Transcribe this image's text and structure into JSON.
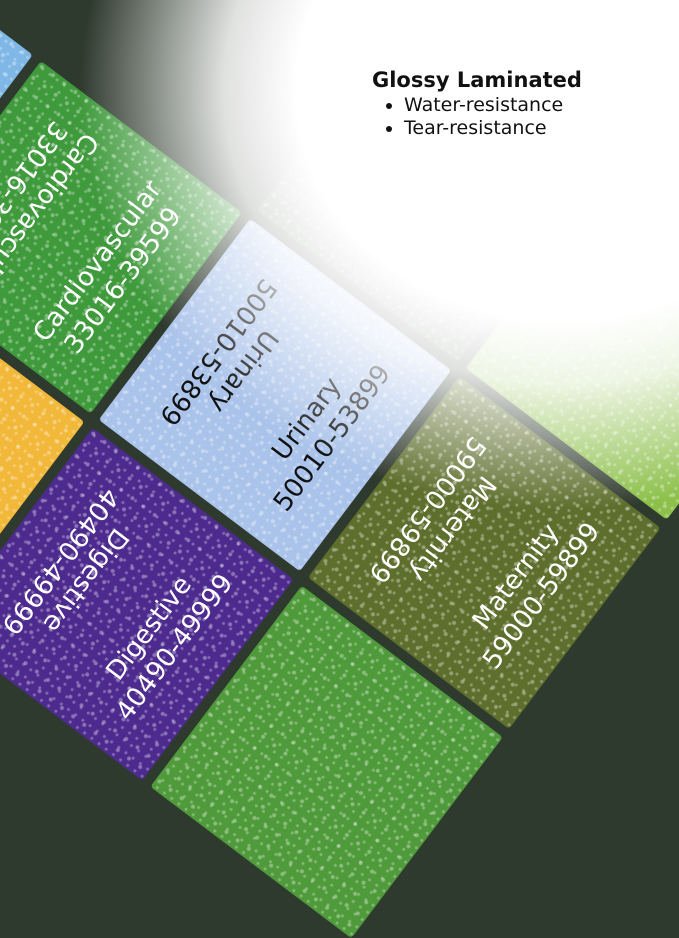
{
  "caption": {
    "title": "Glossy Laminated",
    "bullets": [
      "Water-resistance",
      "Tear-resistance"
    ]
  },
  "tiles": [
    {
      "name": "Cardiovascular",
      "range": "33016-39599",
      "color": "#3f9a3c",
      "text_color": "#ffffff"
    },
    {
      "name": "Urinary",
      "range": "50010-53899",
      "color": "#aac3ea",
      "text_color": "#111111"
    },
    {
      "name": "Maternity",
      "range": "59000-59899",
      "color": "#5e6e2c",
      "text_color": "#ffffff"
    },
    {
      "name": "Digestive",
      "range": "40490-49999",
      "color": "#4d2a8e",
      "text_color": "#ffffff"
    },
    {
      "color": "#f2b83a"
    },
    {
      "color": "#4a5c4a"
    },
    {
      "color": "#4f9a3a"
    },
    {
      "color": "#7fb8e6"
    },
    {
      "color": "#8cc04a"
    }
  ]
}
